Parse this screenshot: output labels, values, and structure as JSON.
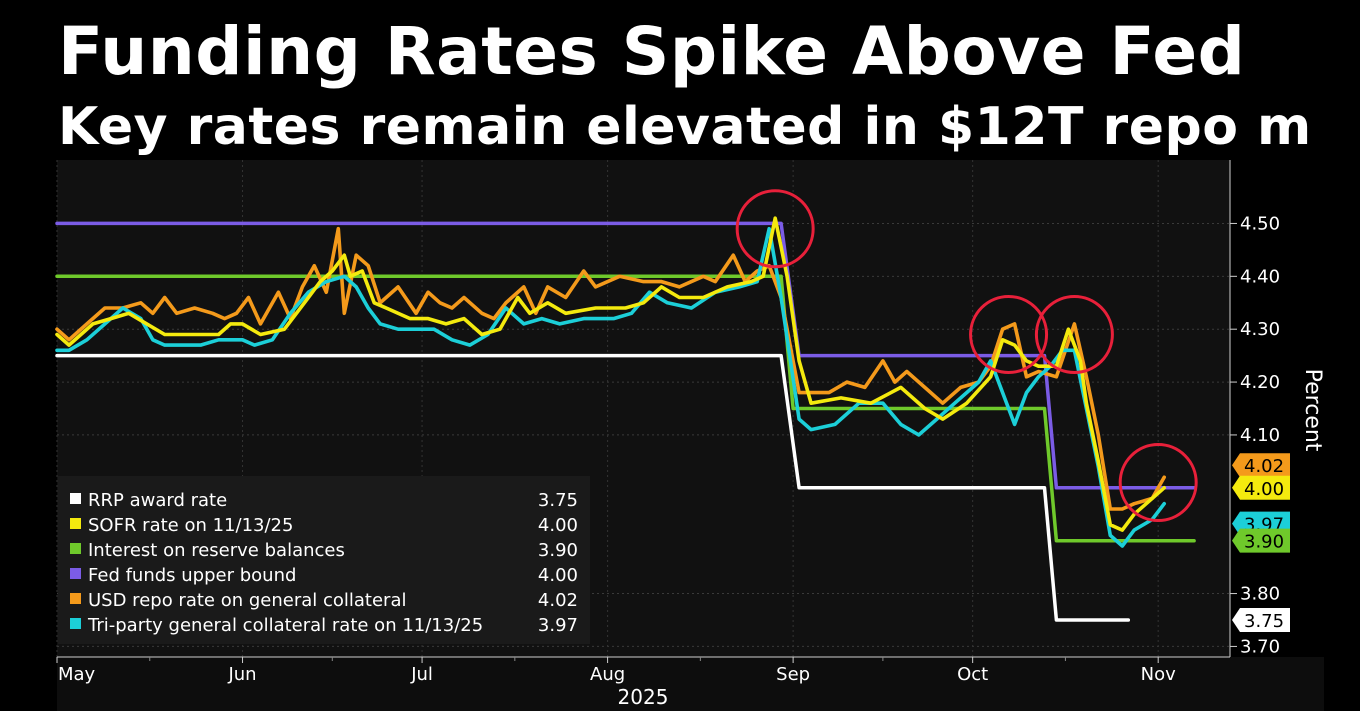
{
  "title": "Funding Rates Spike Above Fed",
  "subtitle": "Key rates remain elevated in $12T repo m",
  "chart_data": {
    "type": "line",
    "title": "Funding Rates Spike Above Fed",
    "subtitle": "Key rates remain elevated in $12T repo m",
    "ylabel": "Percent",
    "xlabel": "2025",
    "ylim": [
      3.68,
      4.62
    ],
    "yticks": [
      "4.50",
      "4.40",
      "4.30",
      "4.20",
      "4.10",
      "3.80",
      "3.70"
    ],
    "x_labels": [
      {
        "label": "May",
        "day": 0
      },
      {
        "label": "Jun",
        "day": 31
      },
      {
        "label": "Jul",
        "day": 61
      },
      {
        "label": "Aug",
        "day": 92
      },
      {
        "label": "Sep",
        "day": 123
      },
      {
        "label": "Oct",
        "day": 153
      },
      {
        "label": "Nov",
        "day": 184
      }
    ],
    "x_range": [
      0,
      196
    ],
    "grid": true,
    "legend_position": "bottom-left",
    "colors": {
      "rrp": "#ffffff",
      "sofr": "#f4ea0e",
      "iorb": "#6fc92b",
      "fedfunds": "#7b5ce6",
      "repo": "#f49a1b",
      "triparty": "#1ccfd8",
      "annotation": "#e8203a"
    },
    "series": [
      {
        "name": "RRP award rate",
        "legend_value": "3.75",
        "badge": "3.75",
        "badge_value": 3.75,
        "color": "#ffffff",
        "points": [
          [
            0,
            4.25
          ],
          [
            121,
            4.25
          ],
          [
            124,
            4.0
          ],
          [
            165,
            4.0
          ],
          [
            167,
            3.75
          ],
          [
            179,
            3.75
          ]
        ]
      },
      {
        "name": "SOFR rate on 11/13/25",
        "legend_value": "4.00",
        "badge": "4.00",
        "badge_value": 4.0,
        "color": "#f4ea0e",
        "points": [
          [
            0,
            4.29
          ],
          [
            2,
            4.27
          ],
          [
            6,
            4.31
          ],
          [
            9,
            4.32
          ],
          [
            12,
            4.33
          ],
          [
            15,
            4.31
          ],
          [
            18,
            4.29
          ],
          [
            24,
            4.29
          ],
          [
            27,
            4.29
          ],
          [
            29,
            4.31
          ],
          [
            31,
            4.31
          ],
          [
            34,
            4.29
          ],
          [
            38,
            4.3
          ],
          [
            42,
            4.36
          ],
          [
            44,
            4.39
          ],
          [
            46,
            4.41
          ],
          [
            48,
            4.44
          ],
          [
            49,
            4.4
          ],
          [
            51,
            4.41
          ],
          [
            53,
            4.35
          ],
          [
            55,
            4.34
          ],
          [
            59,
            4.32
          ],
          [
            62,
            4.32
          ],
          [
            65,
            4.31
          ],
          [
            68,
            4.32
          ],
          [
            71,
            4.29
          ],
          [
            74,
            4.3
          ],
          [
            77,
            4.36
          ],
          [
            79,
            4.33
          ],
          [
            82,
            4.35
          ],
          [
            85,
            4.33
          ],
          [
            90,
            4.34
          ],
          [
            95,
            4.34
          ],
          [
            98,
            4.35
          ],
          [
            101,
            4.38
          ],
          [
            104,
            4.36
          ],
          [
            108,
            4.36
          ],
          [
            112,
            4.38
          ],
          [
            116,
            4.39
          ],
          [
            118,
            4.4
          ],
          [
            120,
            4.51
          ],
          [
            122,
            4.4
          ],
          [
            124,
            4.24
          ],
          [
            126,
            4.16
          ],
          [
            131,
            4.17
          ],
          [
            136,
            4.16
          ],
          [
            141,
            4.19
          ],
          [
            145,
            4.15
          ],
          [
            148,
            4.13
          ],
          [
            152,
            4.16
          ],
          [
            156,
            4.21
          ],
          [
            158,
            4.28
          ],
          [
            160,
            4.27
          ],
          [
            162,
            4.24
          ],
          [
            164,
            4.23
          ],
          [
            167,
            4.23
          ],
          [
            169,
            4.3
          ],
          [
            171,
            4.24
          ],
          [
            172,
            4.16
          ],
          [
            174,
            4.05
          ],
          [
            176,
            3.93
          ],
          [
            178,
            3.92
          ],
          [
            180,
            3.95
          ],
          [
            183,
            3.98
          ],
          [
            185,
            4.0
          ]
        ]
      },
      {
        "name": "Interest on reserve balances",
        "legend_value": "3.90",
        "badge": "3.90",
        "badge_value": 3.9,
        "color": "#6fc92b",
        "points": [
          [
            0,
            4.4
          ],
          [
            121,
            4.4
          ],
          [
            123,
            4.15
          ],
          [
            165,
            4.15
          ],
          [
            167,
            3.9
          ],
          [
            190,
            3.9
          ]
        ]
      },
      {
        "name": "Fed funds upper bound",
        "legend_value": "4.00",
        "badge": "",
        "badge_value": 4.0,
        "color": "#7b5ce6",
        "points": [
          [
            0,
            4.5
          ],
          [
            121,
            4.5
          ],
          [
            124,
            4.25
          ],
          [
            165,
            4.25
          ],
          [
            167,
            4.0
          ],
          [
            190,
            4.0
          ]
        ]
      },
      {
        "name": "USD repo rate on general collateral",
        "legend_value": "4.02",
        "badge": "4.02",
        "badge_value": 4.02,
        "color": "#f49a1b",
        "points": [
          [
            0,
            4.3
          ],
          [
            2,
            4.28
          ],
          [
            5,
            4.31
          ],
          [
            8,
            4.34
          ],
          [
            11,
            4.34
          ],
          [
            14,
            4.35
          ],
          [
            16,
            4.33
          ],
          [
            18,
            4.36
          ],
          [
            20,
            4.33
          ],
          [
            23,
            4.34
          ],
          [
            26,
            4.33
          ],
          [
            28,
            4.32
          ],
          [
            30,
            4.33
          ],
          [
            32,
            4.36
          ],
          [
            34,
            4.31
          ],
          [
            37,
            4.37
          ],
          [
            39,
            4.32
          ],
          [
            41,
            4.38
          ],
          [
            43,
            4.42
          ],
          [
            45,
            4.37
          ],
          [
            47,
            4.49
          ],
          [
            48,
            4.33
          ],
          [
            50,
            4.44
          ],
          [
            52,
            4.42
          ],
          [
            54,
            4.35
          ],
          [
            57,
            4.38
          ],
          [
            60,
            4.33
          ],
          [
            62,
            4.37
          ],
          [
            64,
            4.35
          ],
          [
            66,
            4.34
          ],
          [
            68,
            4.36
          ],
          [
            71,
            4.33
          ],
          [
            73,
            4.32
          ],
          [
            75,
            4.35
          ],
          [
            78,
            4.38
          ],
          [
            80,
            4.33
          ],
          [
            82,
            4.38
          ],
          [
            85,
            4.36
          ],
          [
            88,
            4.41
          ],
          [
            90,
            4.38
          ],
          [
            94,
            4.4
          ],
          [
            98,
            4.39
          ],
          [
            101,
            4.39
          ],
          [
            104,
            4.38
          ],
          [
            108,
            4.4
          ],
          [
            110,
            4.39
          ],
          [
            113,
            4.44
          ],
          [
            115,
            4.39
          ],
          [
            117,
            4.41
          ],
          [
            119,
            4.42
          ],
          [
            121,
            4.36
          ],
          [
            124,
            4.18
          ],
          [
            126,
            4.18
          ],
          [
            129,
            4.18
          ],
          [
            132,
            4.2
          ],
          [
            135,
            4.19
          ],
          [
            138,
            4.24
          ],
          [
            140,
            4.2
          ],
          [
            142,
            4.22
          ],
          [
            145,
            4.19
          ],
          [
            148,
            4.16
          ],
          [
            151,
            4.19
          ],
          [
            154,
            4.2
          ],
          [
            156,
            4.23
          ],
          [
            158,
            4.3
          ],
          [
            160,
            4.31
          ],
          [
            162,
            4.21
          ],
          [
            164,
            4.22
          ],
          [
            167,
            4.21
          ],
          [
            170,
            4.31
          ],
          [
            172,
            4.21
          ],
          [
            174,
            4.1
          ],
          [
            176,
            3.96
          ],
          [
            178,
            3.96
          ],
          [
            180,
            3.97
          ],
          [
            183,
            3.98
          ],
          [
            185,
            4.02
          ]
        ]
      },
      {
        "name": "Tri-party general collateral rate on 11/13/25",
        "legend_value": "3.97",
        "badge": "3.97",
        "badge_value": 3.97,
        "color": "#1ccfd8",
        "points": [
          [
            0,
            4.26
          ],
          [
            2,
            4.26
          ],
          [
            5,
            4.28
          ],
          [
            8,
            4.31
          ],
          [
            11,
            4.34
          ],
          [
            14,
            4.32
          ],
          [
            16,
            4.28
          ],
          [
            18,
            4.27
          ],
          [
            20,
            4.27
          ],
          [
            24,
            4.27
          ],
          [
            27,
            4.28
          ],
          [
            29,
            4.28
          ],
          [
            31,
            4.28
          ],
          [
            33,
            4.27
          ],
          [
            36,
            4.28
          ],
          [
            39,
            4.33
          ],
          [
            42,
            4.37
          ],
          [
            45,
            4.39
          ],
          [
            48,
            4.4
          ],
          [
            50,
            4.38
          ],
          [
            52,
            4.34
          ],
          [
            54,
            4.31
          ],
          [
            57,
            4.3
          ],
          [
            60,
            4.3
          ],
          [
            63,
            4.3
          ],
          [
            66,
            4.28
          ],
          [
            69,
            4.27
          ],
          [
            72,
            4.29
          ],
          [
            75,
            4.34
          ],
          [
            78,
            4.31
          ],
          [
            81,
            4.32
          ],
          [
            84,
            4.31
          ],
          [
            88,
            4.32
          ],
          [
            93,
            4.32
          ],
          [
            96,
            4.33
          ],
          [
            99,
            4.37
          ],
          [
            102,
            4.35
          ],
          [
            106,
            4.34
          ],
          [
            110,
            4.37
          ],
          [
            114,
            4.38
          ],
          [
            117,
            4.39
          ],
          [
            119,
            4.49
          ],
          [
            121,
            4.36
          ],
          [
            124,
            4.13
          ],
          [
            126,
            4.11
          ],
          [
            130,
            4.12
          ],
          [
            134,
            4.16
          ],
          [
            138,
            4.16
          ],
          [
            141,
            4.12
          ],
          [
            144,
            4.1
          ],
          [
            147,
            4.13
          ],
          [
            150,
            4.16
          ],
          [
            152,
            4.18
          ],
          [
            154,
            4.2
          ],
          [
            156,
            4.24
          ],
          [
            158,
            4.18
          ],
          [
            160,
            4.12
          ],
          [
            162,
            4.18
          ],
          [
            164,
            4.21
          ],
          [
            166,
            4.23
          ],
          [
            168,
            4.26
          ],
          [
            170,
            4.26
          ],
          [
            172,
            4.15
          ],
          [
            174,
            4.04
          ],
          [
            176,
            3.91
          ],
          [
            178,
            3.89
          ],
          [
            180,
            3.92
          ],
          [
            183,
            3.94
          ],
          [
            185,
            3.97
          ]
        ]
      }
    ],
    "annotations": [
      {
        "type": "circle",
        "day": 120,
        "value": 4.49
      },
      {
        "type": "circle",
        "day": 159,
        "value": 4.29
      },
      {
        "type": "circle",
        "day": 170,
        "value": 4.29
      },
      {
        "type": "circle",
        "day": 184,
        "value": 4.01
      }
    ]
  }
}
